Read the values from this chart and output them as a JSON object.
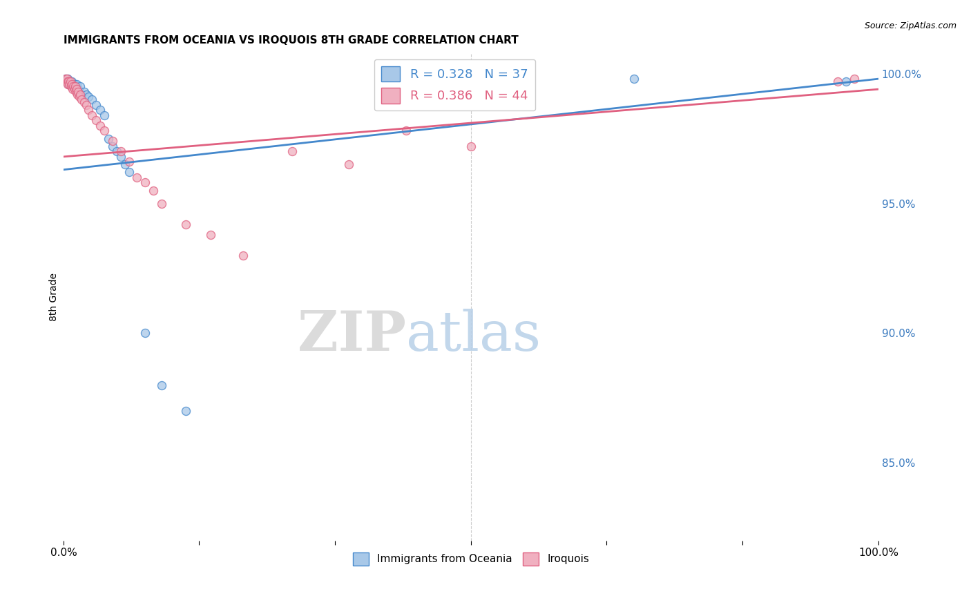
{
  "title": "IMMIGRANTS FROM OCEANIA VS IROQUOIS 8TH GRADE CORRELATION CHART",
  "source": "Source: ZipAtlas.com",
  "ylabel": "8th Grade",
  "ylabel_right_ticks": [
    "100.0%",
    "95.0%",
    "90.0%",
    "85.0%"
  ],
  "ylabel_right_positions": [
    1.0,
    0.95,
    0.9,
    0.85
  ],
  "blue_color": "#a8c8e8",
  "pink_color": "#f0b0c0",
  "blue_line_color": "#4488cc",
  "pink_line_color": "#e06080",
  "legend_r_blue": "0.328",
  "legend_n_blue": "37",
  "legend_r_pink": "0.386",
  "legend_n_pink": "44",
  "blue_scatter_x": [
    0.002,
    0.003,
    0.004,
    0.005,
    0.006,
    0.007,
    0.008,
    0.01,
    0.01,
    0.011,
    0.012,
    0.013,
    0.014,
    0.015,
    0.016,
    0.017,
    0.018,
    0.02,
    0.022,
    0.025,
    0.028,
    0.03,
    0.035,
    0.04,
    0.045,
    0.05,
    0.055,
    0.06,
    0.065,
    0.07,
    0.075,
    0.08,
    0.1,
    0.12,
    0.15,
    0.7,
    0.96
  ],
  "blue_scatter_y": [
    0.998,
    0.997,
    0.997,
    0.998,
    0.996,
    0.997,
    0.996,
    0.997,
    0.995,
    0.996,
    0.995,
    0.996,
    0.994,
    0.995,
    0.996,
    0.993,
    0.994,
    0.995,
    0.992,
    0.993,
    0.992,
    0.991,
    0.99,
    0.988,
    0.986,
    0.984,
    0.975,
    0.972,
    0.97,
    0.968,
    0.965,
    0.962,
    0.9,
    0.88,
    0.87,
    0.998,
    0.997
  ],
  "pink_scatter_x": [
    0.002,
    0.003,
    0.004,
    0.005,
    0.005,
    0.006,
    0.007,
    0.008,
    0.009,
    0.01,
    0.011,
    0.012,
    0.013,
    0.014,
    0.015,
    0.016,
    0.017,
    0.018,
    0.019,
    0.02,
    0.022,
    0.025,
    0.028,
    0.03,
    0.035,
    0.04,
    0.045,
    0.05,
    0.06,
    0.07,
    0.08,
    0.09,
    0.1,
    0.11,
    0.12,
    0.15,
    0.18,
    0.22,
    0.28,
    0.35,
    0.42,
    0.5,
    0.95,
    0.97
  ],
  "pink_scatter_y": [
    0.998,
    0.997,
    0.998,
    0.997,
    0.996,
    0.997,
    0.996,
    0.997,
    0.995,
    0.996,
    0.994,
    0.995,
    0.994,
    0.995,
    0.993,
    0.994,
    0.992,
    0.993,
    0.991,
    0.992,
    0.99,
    0.989,
    0.988,
    0.986,
    0.984,
    0.982,
    0.98,
    0.978,
    0.974,
    0.97,
    0.966,
    0.96,
    0.958,
    0.955,
    0.95,
    0.942,
    0.938,
    0.93,
    0.97,
    0.965,
    0.978,
    0.972,
    0.997,
    0.998
  ],
  "blue_trend_x": [
    0.0,
    1.0
  ],
  "blue_trend_y": [
    0.963,
    0.998
  ],
  "pink_trend_x": [
    0.0,
    1.0
  ],
  "pink_trend_y": [
    0.968,
    0.994
  ],
  "xmin": 0.0,
  "xmax": 1.0,
  "ymin": 0.82,
  "ymax": 1.008,
  "background_color": "#ffffff",
  "grid_color": "#cccccc",
  "marker_size": 75,
  "legend_fontsize": 13,
  "title_fontsize": 11,
  "watermark_zip_color": "#d5d5d5",
  "watermark_atlas_color": "#b8d0e8"
}
